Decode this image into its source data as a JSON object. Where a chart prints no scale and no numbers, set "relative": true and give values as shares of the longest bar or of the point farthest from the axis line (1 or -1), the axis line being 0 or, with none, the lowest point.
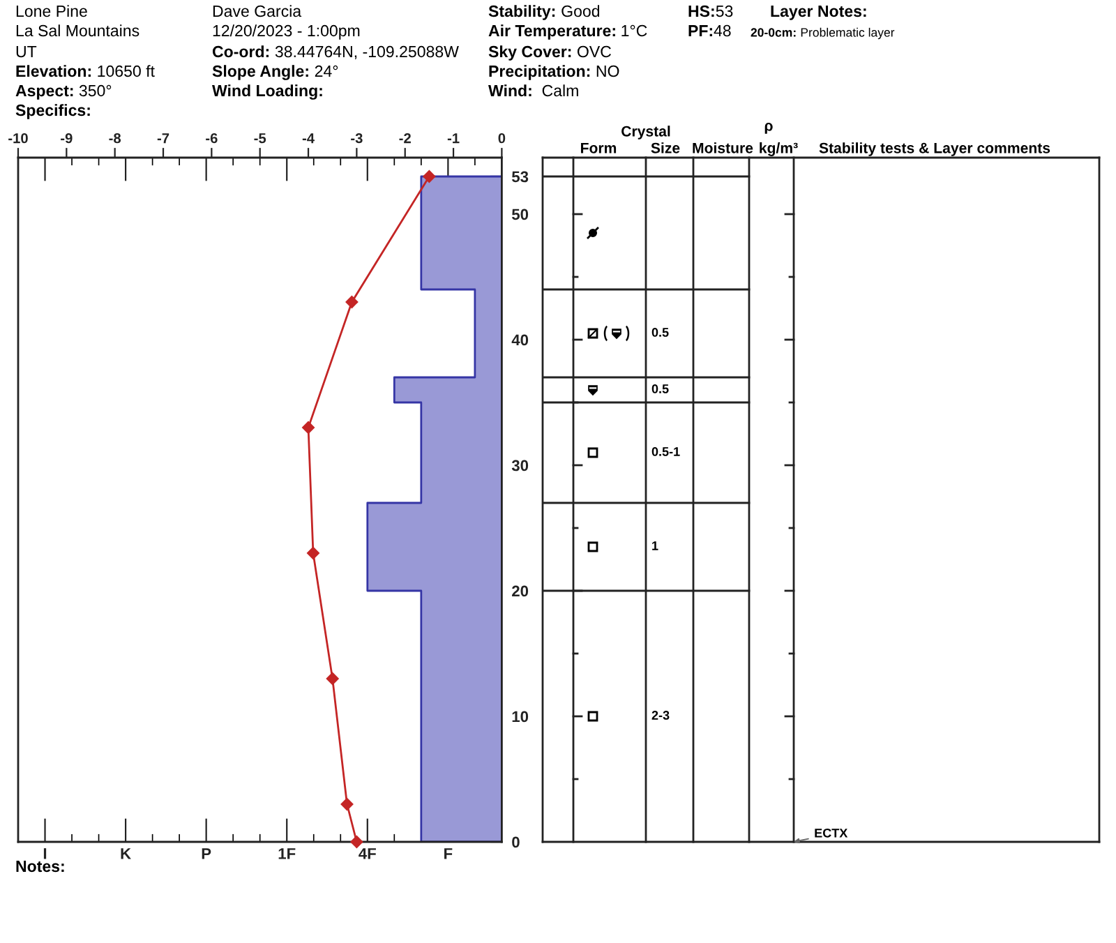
{
  "chart_data": [
    {
      "type": "area",
      "orientation": "horizontal",
      "relative": true,
      "ylim": [
        0,
        54.5
      ],
      "yticks": [
        0,
        {
          "value": 5,
          "label": null
        },
        10,
        {
          "value": 15,
          "label": null
        },
        20,
        {
          "value": 25,
          "label": null
        },
        30,
        {
          "value": 35,
          "label": null
        },
        40,
        {
          "value": 45,
          "label": null
        },
        50,
        53
      ],
      "series": [
        {
          "color": "#9999d6",
          "x": [
            0,
            20,
            20,
            27,
            27,
            35,
            35,
            37,
            37,
            44,
            44,
            53
          ],
          "values": [
            -0.6,
            -0.6,
            -1,
            -1,
            -0.6,
            -0.6,
            -0.8,
            -0.8,
            -0.2,
            -0.2,
            -0.6,
            -0.6
          ]
        }
      ],
      "annotations": [
        "Lone Pine",
        "La Sal Mountains",
        "UT",
        "Elevation: 10650 ft",
        "Aspect: 350°",
        "Specifics:",
        "Dave Garcia",
        "12/20/2023 - 1:00pm",
        "Co-ord: 38.44764N, -109.25088W",
        "Slope Angle: 24°",
        "Wind Loading:",
        "Stability: Good",
        "Air Temperature: 1°C",
        "Sky Cover: OVC",
        "Precipitation: NO",
        "Wind:  Calm",
        "HS:53",
        "PF:48",
        "Layer Notes:",
        "20-0cm: Problematic layer",
        "I",
        "K",
        "P",
        "1F",
        "4F",
        "F",
        "Notes:"
      ]
    },
    {
      "type": "line",
      "orientation": "horizontal",
      "xlim": [
        -10,
        0
      ],
      "xticks": [
        -10,
        -9,
        -8,
        -7,
        -6,
        -5,
        -4,
        -3,
        -2,
        -1,
        0
      ],
      "ylim": [
        0,
        54.5
      ],
      "tick_labels": "x",
      "series": [
        {
          "color": "#c42525",
          "marker": "diamond",
          "x": [
            0,
            3,
            13,
            23,
            33,
            43,
            53
          ],
          "values": [
            -3.0,
            -3.2,
            -3.5,
            -3.9,
            -4.0,
            -3.1,
            -1.5
          ]
        }
      ]
    },
    {
      "type": "other",
      "annotations": [
        "Crystal",
        "Form",
        "Size",
        "Moisture",
        "ρ",
        "kg/m³",
        "Stability tests & Layer comments",
        "0.5",
        "0.5",
        "0.5-1",
        "1",
        "2-3",
        "ECTX"
      ]
    }
  ]
}
